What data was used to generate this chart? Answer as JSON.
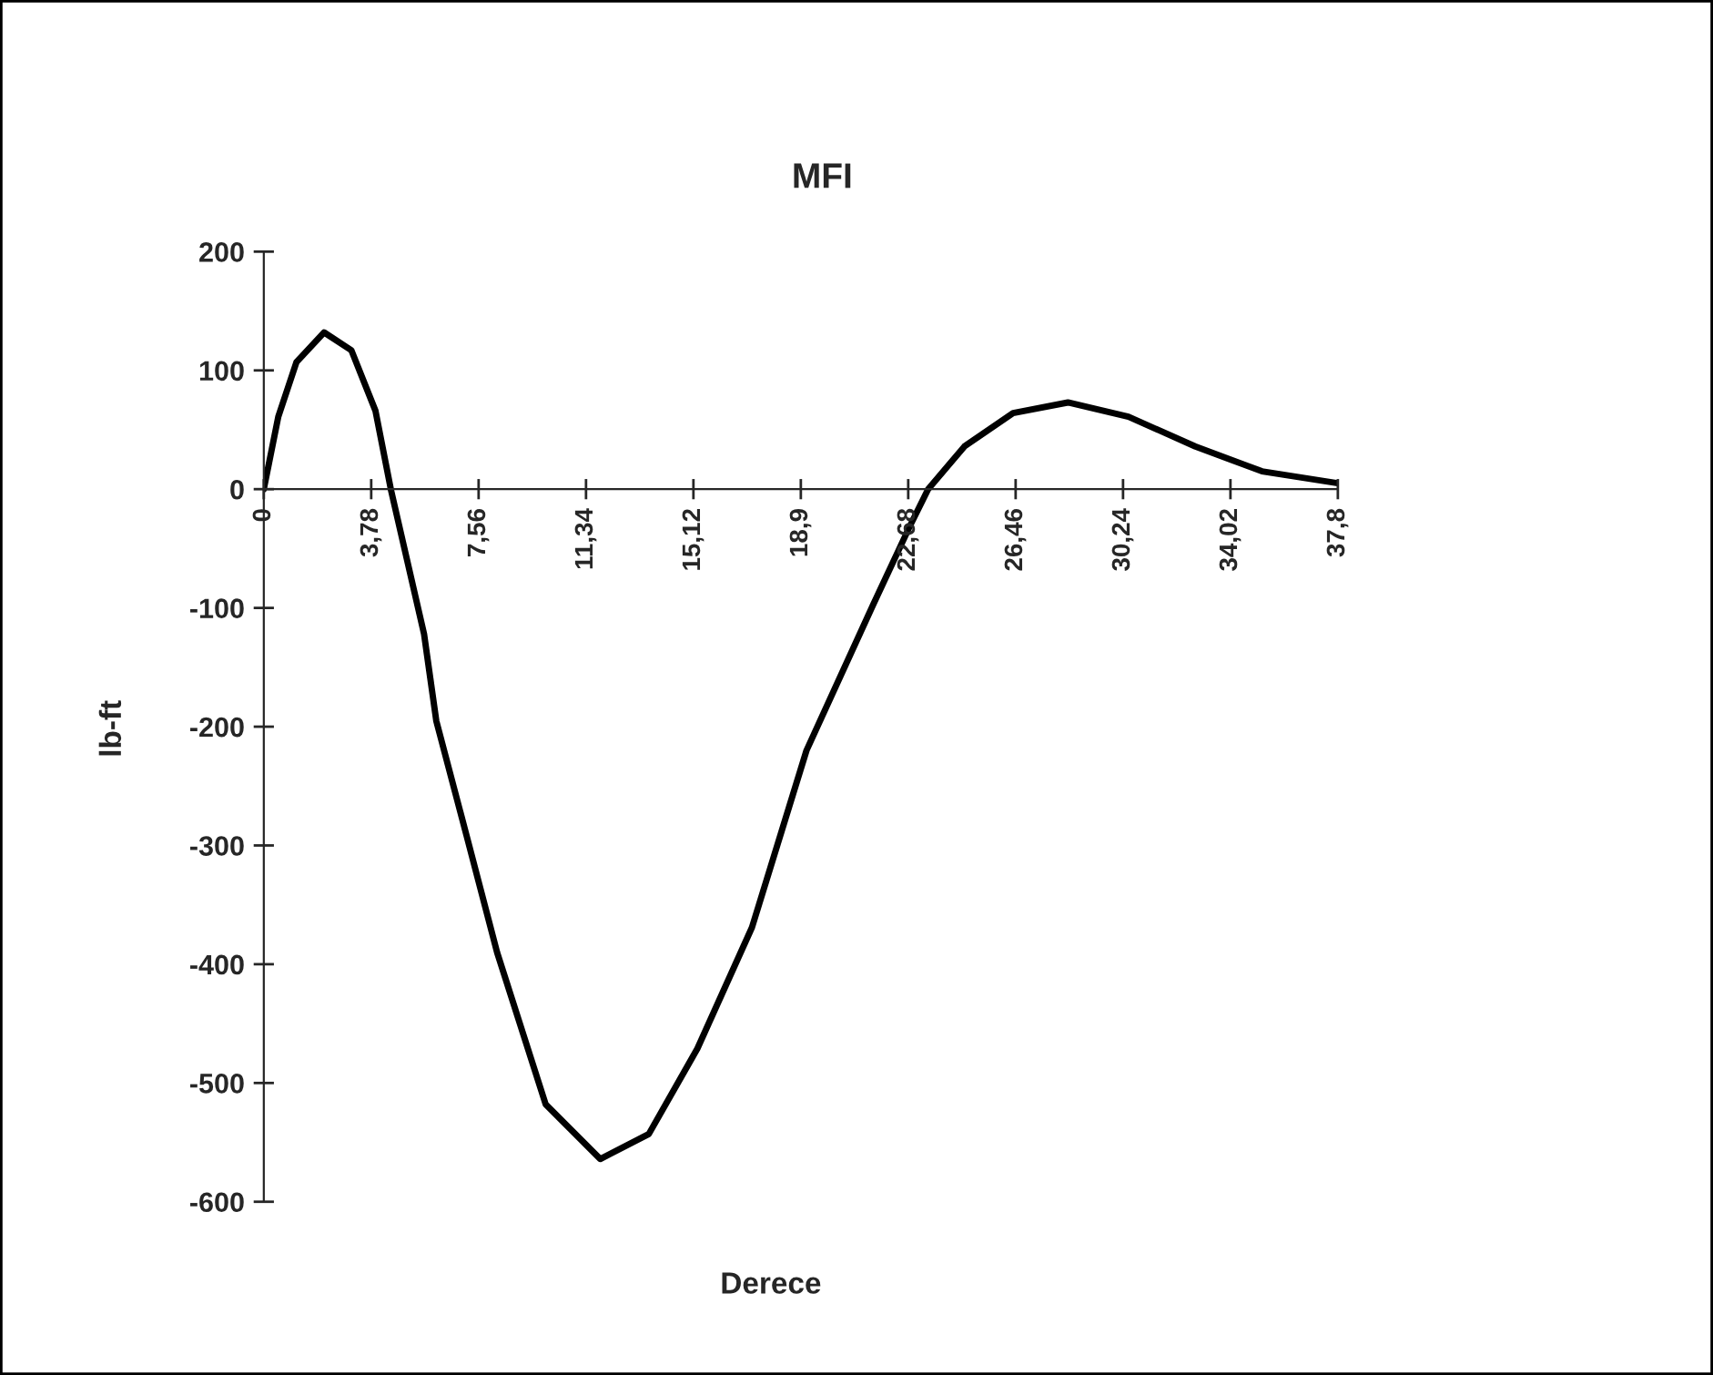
{
  "chart_data": {
    "type": "line",
    "title": "MFI",
    "xlabel": "Derece",
    "ylabel": "lb-ft",
    "x": [
      0,
      0.51,
      1.15,
      2.12,
      3.08,
      3.93,
      4.47,
      5.64,
      6.07,
      7.14,
      8.21,
      9.92,
      11.84,
      13.55,
      15.26,
      17.18,
      19.1,
      21.45,
      22.74,
      23.38,
      24.66,
      26.37,
      28.3,
      30.43,
      32.78,
      35.13,
      37.8
    ],
    "series": [
      {
        "color": "#000000",
        "values": [
          0,
          61,
          107,
          132,
          117,
          66,
          0,
          -122,
          -195,
          -292,
          -390,
          -518,
          -564,
          -543,
          -471,
          -369,
          -220,
          -97,
          -31,
          0,
          36,
          64,
          73,
          61,
          36,
          15,
          5
        ]
      }
    ],
    "xlim": [
      0,
      37.8
    ],
    "xticks": [
      0,
      {
        "value": 3.78,
        "label": "3,78"
      },
      {
        "value": 7.56,
        "label": "7,56"
      },
      {
        "value": 11.34,
        "label": "11,34"
      },
      {
        "value": 15.12,
        "label": "15,12"
      },
      {
        "value": 18.9,
        "label": "18,9"
      },
      {
        "value": 22.68,
        "label": "22,68"
      },
      {
        "value": 26.46,
        "label": "26,46"
      },
      {
        "value": 30.24,
        "label": "30,24"
      },
      {
        "value": 34.02,
        "label": "34,02"
      },
      {
        "value": 37.8,
        "label": "37,8"
      }
    ],
    "ylim": [
      -600,
      200
    ],
    "yticks": [
      -600,
      -500,
      -400,
      -300,
      -200,
      -100,
      0,
      100,
      200
    ],
    "grid": false,
    "legend": false,
    "marker": "none",
    "line_style": "solid"
  }
}
